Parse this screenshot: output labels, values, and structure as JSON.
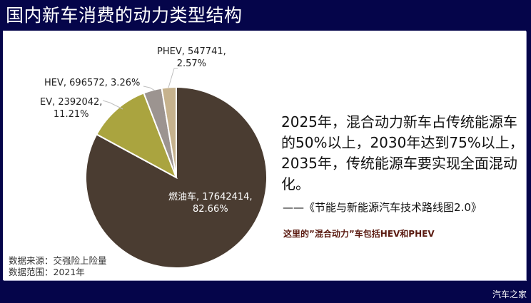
{
  "header": {
    "title": "国内新车消费的动力类型结构"
  },
  "chart_data": {
    "type": "pie",
    "title": "国内新车消费的动力类型结构",
    "slices": [
      {
        "name": "燃油车",
        "value": 17642414,
        "percent": 82.66,
        "color": "#4a3c31"
      },
      {
        "name": "EV",
        "value": 2392042,
        "percent": 11.21,
        "color": "#aaa43f"
      },
      {
        "name": "HEV",
        "value": 696572,
        "percent": 3.26,
        "color": "#9c9490"
      },
      {
        "name": "PHEV",
        "value": 547741,
        "percent": 2.57,
        "color": "#c6b28d"
      }
    ],
    "start_angle": "12 o'clock, clockwise starting with 燃油车",
    "legend": "none (data labels on slices)"
  },
  "labels": {
    "fuel": {
      "line1": "燃油车, 17642414,",
      "line2": "82.66%"
    },
    "ev": {
      "line1": "EV, 2392042,",
      "line2": "11.21%"
    },
    "hev": {
      "line1": "HEV, 696572, 3.26%"
    },
    "phev": {
      "line1": "PHEV, 547741,",
      "line2": "2.57%"
    }
  },
  "quote": {
    "text": "2025年，混合动力新车占传统能源车的50%以上，2030年达到75%以上，2035年，传统能源车要实现全面混动化。",
    "source": "——《节能与新能源汽车技术路线图2.0》"
  },
  "note": "这里的”混合动力”车包括HEV和PHEV",
  "data_source": {
    "line1": "数据来源：交强险上险量",
    "line2": "数据范围：2021年"
  },
  "watermark": "汽车之家"
}
